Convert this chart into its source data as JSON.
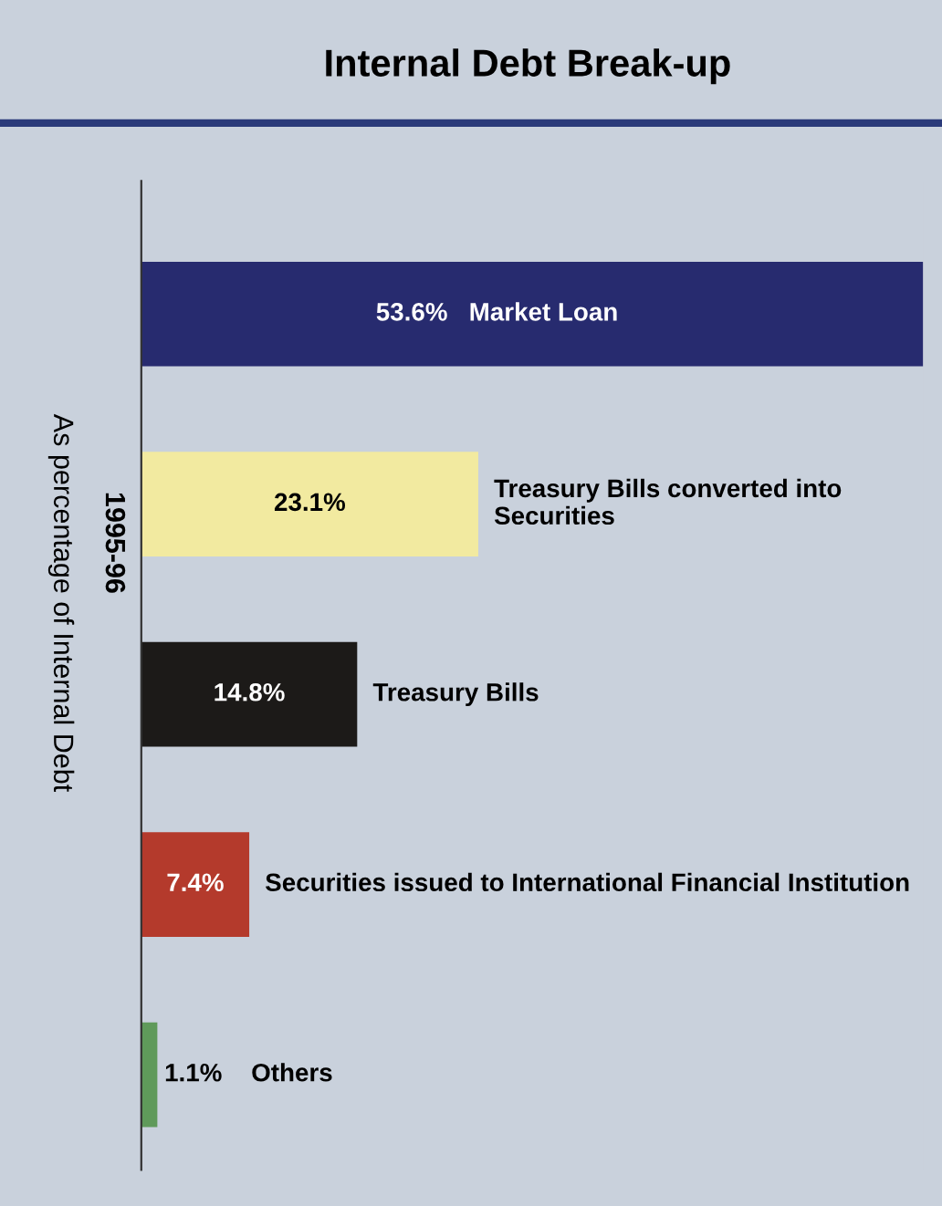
{
  "chart_data": {
    "type": "bar",
    "orientation": "horizontal",
    "title": "Internal Debt Break-up",
    "ylabel": "As percentage of Internal Debt",
    "annotations": [
      "1995-96"
    ],
    "categories": [
      "Market Loan",
      "Treasury Bills converted into Securities",
      "Treasury Bills",
      "Securities issued to International Financial Institution",
      "Others"
    ],
    "values": [
      53.6,
      23.1,
      14.8,
      7.4,
      1.1
    ],
    "colors": [
      "#272b6f",
      "#f2eaa0",
      "#1c1a18",
      "#b43a2c",
      "#5f9a5a"
    ],
    "value_labels": [
      "53.6%",
      "23.1%",
      "14.8%",
      "7.4%",
      "1.1%"
    ]
  }
}
